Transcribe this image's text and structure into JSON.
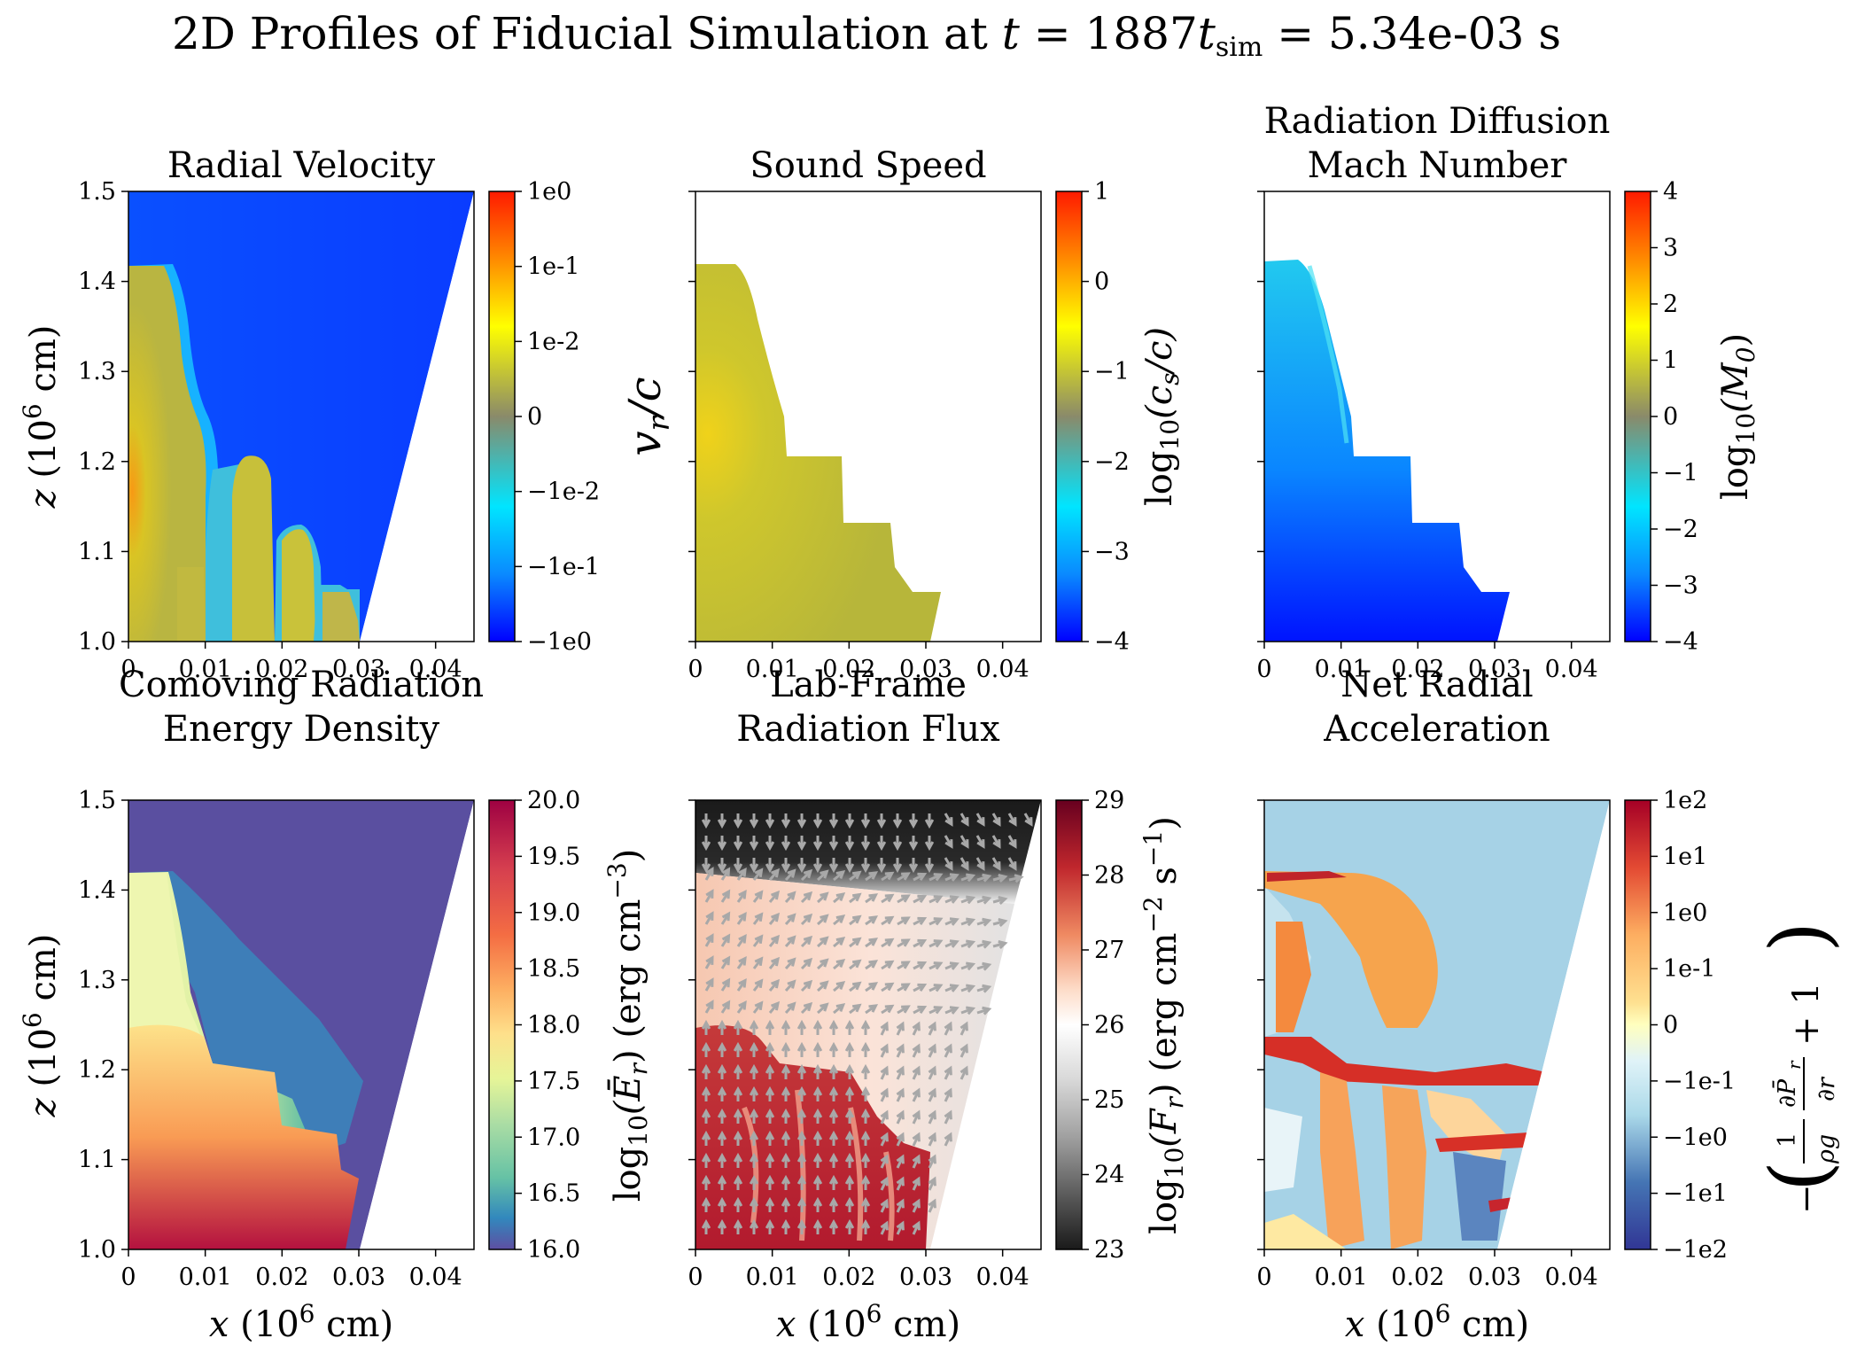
{
  "suptitle": {
    "prefix": "2D Profiles of Fiducial Simulation at ",
    "t": "t",
    "eq1": " = 1887",
    "tsim": "t",
    "sim": "sim",
    "eq2": " = 5.34e-03 s"
  },
  "colors": {
    "blue_bg": "#0a3cff",
    "olive": "#b7b63a",
    "yellow": "#e7e70c",
    "orange": "#f7a51f",
    "cyan": "#19d7ee",
    "purple": "#5a4fa0",
    "lightblue": "#a6d2e6",
    "darkred": "#b01d33",
    "grey_arrow": "#a8a8a8"
  },
  "axes_labels": {
    "xlabel_prefix": "x",
    "xlabel_suffix": " (10",
    "xlabel_exp": "6",
    "xlabel_unit": " cm)",
    "ylabel_prefix": "z",
    "ylabel_suffix": " (10",
    "ylabel_exp": "6",
    "ylabel_unit": " cm)"
  },
  "chart_data": [
    {
      "type": "heatmap",
      "title": [
        "Radial Velocity"
      ],
      "xlim": [
        0,
        0.045
      ],
      "ylim": [
        1.0,
        1.5
      ],
      "xticks": [
        "0",
        "0.01",
        "0.02",
        "0.03",
        "0.04"
      ],
      "yticks": [
        "1.0",
        "1.1",
        "1.2",
        "1.3",
        "1.4",
        "1.5"
      ],
      "colorbar": {
        "label": "v_r/c",
        "ticks": [
          "1e0",
          "1e-1",
          "1e-2",
          "0",
          "−1e-2",
          "−1e-1",
          "−1e0"
        ],
        "colormap": "jet"
      }
    },
    {
      "type": "heatmap",
      "title": [
        "Sound Speed"
      ],
      "xlim": [
        0,
        0.045
      ],
      "ylim": [
        1.0,
        1.5
      ],
      "xticks": [
        "0",
        "0.01",
        "0.02",
        "0.03",
        "0.04"
      ],
      "colorbar": {
        "label": "log10(c_s/c)",
        "ticks": [
          "1",
          "0",
          "−1",
          "−2",
          "−3",
          "−4"
        ],
        "range": [
          -4,
          1
        ],
        "colormap": "jet"
      }
    },
    {
      "type": "heatmap",
      "title": [
        "Radiation Diffusion",
        "Mach Number"
      ],
      "xlim": [
        0,
        0.045
      ],
      "ylim": [
        1.0,
        1.5
      ],
      "xticks": [
        "0",
        "0.01",
        "0.02",
        "0.03",
        "0.04"
      ],
      "colorbar": {
        "label": "log10(M_0)",
        "ticks": [
          "4",
          "3",
          "2",
          "1",
          "0",
          "−1",
          "−2",
          "−3",
          "−4"
        ],
        "range": [
          -4,
          4
        ],
        "colormap": "jet"
      }
    },
    {
      "type": "heatmap",
      "title": [
        "Comoving Radiation",
        "Energy Density"
      ],
      "xlim": [
        0,
        0.045
      ],
      "ylim": [
        1.0,
        1.5
      ],
      "xticks": [
        "0",
        "0.01",
        "0.02",
        "0.03",
        "0.04"
      ],
      "yticks": [
        "1.0",
        "1.1",
        "1.2",
        "1.3",
        "1.4",
        "1.5"
      ],
      "colorbar": {
        "label": "log10(Ē_r) (erg cm^-3)",
        "ticks": [
          "20.0",
          "19.5",
          "19.0",
          "18.5",
          "18.0",
          "17.5",
          "17.0",
          "16.5",
          "16.0"
        ],
        "range": [
          16.0,
          20.0
        ],
        "colormap": "Spectral"
      }
    },
    {
      "type": "heatmap",
      "title": [
        "Lab-Frame",
        "Radiation Flux"
      ],
      "xlim": [
        0,
        0.045
      ],
      "ylim": [
        1.0,
        1.5
      ],
      "xticks": [
        "0",
        "0.01",
        "0.02",
        "0.03",
        "0.04"
      ],
      "colorbar": {
        "label": "log10(F_r) (erg cm^-2 s^-1)",
        "ticks": [
          "29",
          "28",
          "27",
          "26",
          "25",
          "24",
          "23"
        ],
        "range": [
          23,
          29
        ],
        "colormap": "RdGy"
      }
    },
    {
      "type": "heatmap",
      "title": [
        "Net Radial",
        "Acceleration"
      ],
      "xlim": [
        0,
        0.045
      ],
      "ylim": [
        1.0,
        1.5
      ],
      "xticks": [
        "0",
        "0.01",
        "0.02",
        "0.03",
        "0.04"
      ],
      "colorbar": {
        "label": "−((1/ρg) ∂P̄_r/∂r + 1)",
        "ticks": [
          "1e2",
          "1e1",
          "1e0",
          "1e-1",
          "0",
          "−1e-1",
          "−1e0",
          "−1e1",
          "−1e2"
        ],
        "colormap": "RdYlBu_r"
      }
    }
  ],
  "cb_labels": {
    "vr": "v",
    "vr_sub": "r",
    "vr_tail": "/c",
    "log": "log",
    "log_sub": "10",
    "cs_open": "(c",
    "cs_sub": "s",
    "cs_tail": "/c)",
    "m_open": "(M",
    "m_sub": "0",
    "m_tail": ")",
    "er_open": "(Ē",
    "er_sub": "r",
    "er_tail": ") (erg cm",
    "er_exp": "−3",
    "er_close": ")",
    "fr_open": "(F",
    "fr_sub": "r",
    "fr_tail": ") (erg cm",
    "fr_exp": "−2",
    "fr_mid": " s",
    "fr_exp2": "−1",
    "fr_close": ")",
    "acc_minus": "−",
    "acc_paren_l": "(",
    "acc_one": "1",
    "acc_dp": "∂P̄",
    "acc_dp_sub": "r",
    "acc_rhog": "ρg",
    "acc_dr": "∂r",
    "acc_plus": "+ 1",
    "acc_paren_r": ")"
  }
}
